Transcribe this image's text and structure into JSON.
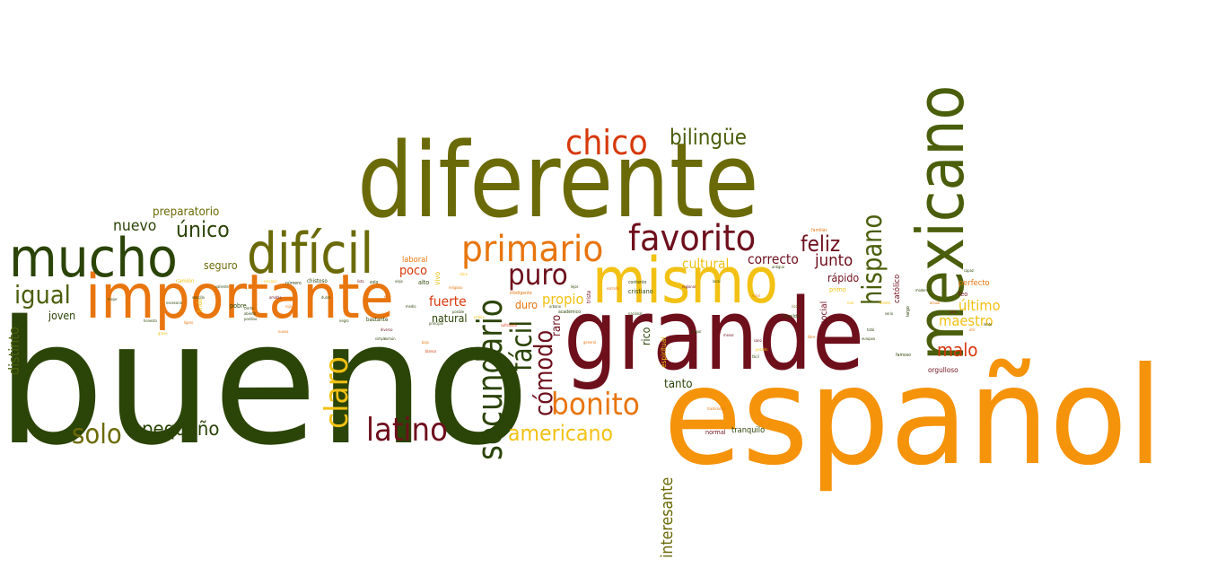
{
  "palette": {
    "dark_green": "#2b4407",
    "olive": "#6b6a08",
    "green": "#4a5e0b",
    "maroon": "#6e0f1c",
    "orange": "#e8750e",
    "light_orange": "#f5930b",
    "yellow": "#f2c113",
    "red": "#d7380a"
  },
  "words": [
    {
      "text": "bueno",
      "color": "#2b4407"
    },
    {
      "text": "español",
      "color": "#f5930b"
    },
    {
      "text": "diferente",
      "color": "#6b6a08"
    },
    {
      "text": "grande",
      "color": "#6e0f1c"
    },
    {
      "text": "mexicano",
      "color": "#4a5e0b"
    },
    {
      "text": "importante",
      "color": "#e8750e"
    },
    {
      "text": "mismo",
      "color": "#f2c113"
    },
    {
      "text": "mucho",
      "color": "#2b4407"
    },
    {
      "text": "difícil",
      "color": "#6b6a08"
    },
    {
      "text": "primario",
      "color": "#e8750e"
    },
    {
      "text": "favorito",
      "color": "#6e0f1c"
    },
    {
      "text": "secundario",
      "color": "#2b4407"
    },
    {
      "text": "chico",
      "color": "#d7380a"
    },
    {
      "text": "claro",
      "color": "#f2c113"
    },
    {
      "text": "latino",
      "color": "#6e0f1c"
    },
    {
      "text": "bonito",
      "color": "#e8750e"
    },
    {
      "text": "hispano",
      "color": "#4a5e0b"
    },
    {
      "text": "fácil",
      "color": "#2b4407"
    },
    {
      "text": "cómodo",
      "color": "#6e0f1c"
    },
    {
      "text": "puro",
      "color": "#6e0f1c"
    },
    {
      "text": "solo",
      "color": "#6b6a08"
    },
    {
      "text": "igual",
      "color": "#4a5e0b"
    },
    {
      "text": "americano",
      "color": "#f2c113"
    },
    {
      "text": "bilingüe",
      "color": "#4a5e0b"
    },
    {
      "text": "pequeño",
      "color": "#2b4407"
    },
    {
      "text": "único",
      "color": "#2b4407"
    },
    {
      "text": "nuevo",
      "color": "#2b4407"
    },
    {
      "text": "feliz",
      "color": "#6e0f1c"
    },
    {
      "text": "junto",
      "color": "#6e0f1c"
    },
    {
      "text": "correcto",
      "color": "#6e0f1c"
    },
    {
      "text": "cultural",
      "color": "#f2c113"
    },
    {
      "text": "malo",
      "color": "#d7380a"
    },
    {
      "text": "último",
      "color": "#f2c113"
    },
    {
      "text": "maestro",
      "color": "#f2c113"
    },
    {
      "text": "interesante",
      "color": "#6b6a08"
    },
    {
      "text": "distinto",
      "color": "#4a5e0b"
    },
    {
      "text": "preparatorio",
      "color": "#6b6a08"
    },
    {
      "text": "fuerte",
      "color": "#d7380a"
    },
    {
      "text": "propio",
      "color": "#f2c113"
    },
    {
      "text": "duro",
      "color": "#e8750e"
    },
    {
      "text": "natural",
      "color": "#2b4407"
    },
    {
      "text": "joven",
      "color": "#2b4407"
    },
    {
      "text": "poco",
      "color": "#d7380a"
    },
    {
      "text": "seguro",
      "color": "#6b6a08"
    },
    {
      "text": "rápido",
      "color": "#6e0f1c"
    },
    {
      "text": "tanto",
      "color": "#2b4407"
    },
    {
      "text": "rico",
      "color": "#2b4407"
    },
    {
      "text": "raro",
      "color": "#6e0f1c"
    },
    {
      "text": "social",
      "color": "#6e0f1c"
    },
    {
      "text": "católico",
      "color": "#6e0f1c"
    },
    {
      "text": "perfecto",
      "color": "#e8750e"
    },
    {
      "text": "orgulloso",
      "color": "#6e0f1c"
    },
    {
      "text": "tranquilo",
      "color": "#2b4407"
    },
    {
      "text": "normal",
      "color": "#6e0f1c"
    },
    {
      "text": "cristiano",
      "color": "#2b4407"
    },
    {
      "text": "laboral",
      "color": "#e8750e"
    },
    {
      "text": "vivo",
      "color": "#f2c113"
    },
    {
      "text": "alto",
      "color": "#2b4407"
    },
    {
      "text": "chistoso",
      "color": "#2b4407"
    },
    {
      "text": "pobre",
      "color": "#2b4407"
    },
    {
      "text": "bastante",
      "color": "#2b4407"
    },
    {
      "text": "lindo",
      "color": "#f2c113"
    },
    {
      "text": "primo",
      "color": "#f2c113"
    },
    {
      "text": "espiritual",
      "color": "#f2c113"
    },
    {
      "text": "triste",
      "color": "#6e0f1c"
    },
    {
      "text": "feo",
      "color": "#6e0f1c"
    },
    {
      "text": "camión",
      "color": "#f2c113"
    },
    {
      "text": "inteligente",
      "color": "#e8750e"
    },
    {
      "text": "contento",
      "color": "#2b4407"
    },
    {
      "text": "familiar",
      "color": "#e8750e"
    },
    {
      "text": "académico",
      "color": "#2b4407"
    },
    {
      "text": "humilde",
      "color": "#2b4407"
    },
    {
      "text": "famoso",
      "color": "#2b4407"
    },
    {
      "text": "largo",
      "color": "#2b4407"
    },
    {
      "text": "posible",
      "color": "#2b4407"
    },
    {
      "text": "suficiente",
      "color": "#d7380a"
    },
    {
      "text": "religioso",
      "color": "#e8750e"
    },
    {
      "text": "principal",
      "color": "#2b4407"
    },
    {
      "text": "tradicional",
      "color": "#e8750e"
    },
    {
      "text": "simple",
      "color": "#2b4407"
    },
    {
      "text": "cierto",
      "color": "#2b4407"
    },
    {
      "text": "abierto",
      "color": "#2b4407"
    },
    {
      "text": "positivo",
      "color": "#2b4407"
    },
    {
      "text": "nuevo",
      "color": "#e8750e"
    },
    {
      "text": "bajo",
      "color": "#e8750e"
    },
    {
      "text": "blanco",
      "color": "#d7380a"
    },
    {
      "text": "sano",
      "color": "#6e0f1c"
    },
    {
      "text": "pesado",
      "color": "#f2c113"
    },
    {
      "text": "fácil",
      "color": "#2b4407"
    },
    {
      "text": "general",
      "color": "#e8750e"
    },
    {
      "text": "mejor",
      "color": "#2b4407"
    },
    {
      "text": "necesario",
      "color": "#2b4407"
    },
    {
      "text": "grave",
      "color": "#f2c113"
    },
    {
      "text": "ligero",
      "color": "#e8750e"
    },
    {
      "text": "rojo",
      "color": "#e8750e"
    },
    {
      "text": "negro",
      "color": "#2b4407"
    },
    {
      "text": "listo",
      "color": "#6e0f1c"
    },
    {
      "text": "viejo",
      "color": "#2b4407"
    },
    {
      "text": "claro",
      "color": "#f2c113"
    },
    {
      "text": "lejos",
      "color": "#2b4407"
    },
    {
      "text": "extraño",
      "color": "#e8750e"
    },
    {
      "text": "mayor",
      "color": "#2b4407"
    },
    {
      "text": "menor",
      "color": "#6e0f1c"
    },
    {
      "text": "rico",
      "color": "#6b6a08"
    },
    {
      "text": "libre",
      "color": "#e8750e"
    },
    {
      "text": "real",
      "color": "#f2c113"
    },
    {
      "text": "total",
      "color": "#2b4407"
    },
    {
      "text": "serio",
      "color": "#2b4407"
    },
    {
      "text": "actual",
      "color": "#e8750e"
    },
    {
      "text": "capaz",
      "color": "#2b4407"
    },
    {
      "text": "útil",
      "color": "#e8750e"
    },
    {
      "text": "lento",
      "color": "#2b4407"
    },
    {
      "text": "caro",
      "color": "#6e0f1c"
    },
    {
      "text": "barato",
      "color": "#f2c113"
    },
    {
      "text": "moderno",
      "color": "#2b4407"
    },
    {
      "text": "antiguo",
      "color": "#2b4407"
    },
    {
      "text": "nacional",
      "color": "#2b4407"
    },
    {
      "text": "regional",
      "color": "#6e0f1c"
    },
    {
      "text": "local",
      "color": "#2b4407"
    },
    {
      "text": "rural",
      "color": "#e8750e"
    },
    {
      "text": "urbano",
      "color": "#2b4407"
    },
    {
      "text": "entero",
      "color": "#f2c113"
    },
    {
      "text": "medio",
      "color": "#2b4407"
    },
    {
      "text": "fino",
      "color": "#e8750e"
    },
    {
      "text": "dulce",
      "color": "#2b4407"
    },
    {
      "text": "amable",
      "color": "#6e0f1c"
    },
    {
      "text": "valiente",
      "color": "#2b4407"
    },
    {
      "text": "sencillo",
      "color": "#2b4407"
    },
    {
      "text": "honesto",
      "color": "#2b4407"
    },
    {
      "text": "cercano",
      "color": "#f2c113"
    },
    {
      "text": "número",
      "color": "#2b4407"
    },
    {
      "text": "solo",
      "color": "#2b4407"
    },
    {
      "text": "diverso",
      "color": "#6e0f1c"
    },
    {
      "text": "común",
      "color": "#2b4407"
    },
    {
      "text": "europeo",
      "color": "#2b4407"
    }
  ]
}
